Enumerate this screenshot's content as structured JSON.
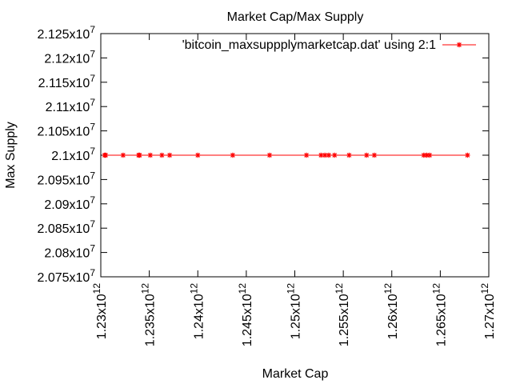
{
  "chart_data": {
    "type": "line",
    "title": "Market Cap/Max Supply",
    "xlabel": "Market Cap",
    "ylabel": "Max Supply",
    "xlim": [
      1230000000000.0,
      1270000000000.0
    ],
    "ylim": [
      20750000.0,
      21250000.0
    ],
    "x_ticks": [
      {
        "mantissa": "1.23",
        "exp": "12",
        "value": 1230000000000.0
      },
      {
        "mantissa": "1.235",
        "exp": "12",
        "value": 1235000000000.0
      },
      {
        "mantissa": "1.24",
        "exp": "12",
        "value": 1240000000000.0
      },
      {
        "mantissa": "1.245",
        "exp": "12",
        "value": 1245000000000.0
      },
      {
        "mantissa": "1.25",
        "exp": "12",
        "value": 1250000000000.0
      },
      {
        "mantissa": "1.255",
        "exp": "12",
        "value": 1255000000000.0
      },
      {
        "mantissa": "1.26",
        "exp": "12",
        "value": 1260000000000.0
      },
      {
        "mantissa": "1.265",
        "exp": "12",
        "value": 1265000000000.0
      },
      {
        "mantissa": "1.27",
        "exp": "12",
        "value": 1270000000000.0
      }
    ],
    "y_ticks": [
      {
        "mantissa": "2.075",
        "exp": "7",
        "value": 20750000.0
      },
      {
        "mantissa": "2.08",
        "exp": "7",
        "value": 20800000.0
      },
      {
        "mantissa": "2.085",
        "exp": "7",
        "value": 20850000.0
      },
      {
        "mantissa": "2.09",
        "exp": "7",
        "value": 20900000.0
      },
      {
        "mantissa": "2.095",
        "exp": "7",
        "value": 20950000.0
      },
      {
        "mantissa": "2.1",
        "exp": "7",
        "value": 21000000.0
      },
      {
        "mantissa": "2.105",
        "exp": "7",
        "value": 21050000.0
      },
      {
        "mantissa": "2.11",
        "exp": "7",
        "value": 21100000.0
      },
      {
        "mantissa": "2.115",
        "exp": "7",
        "value": 21150000.0
      },
      {
        "mantissa": "2.12",
        "exp": "7",
        "value": 21200000.0
      },
      {
        "mantissa": "2.125",
        "exp": "7",
        "value": 21250000.0
      }
    ],
    "grid": false,
    "legend_position": "top-right",
    "series": [
      {
        "name": "'bitcoin_maxsuppplymarketcap.dat' using 2:1",
        "color": "#ff0000",
        "marker": "star",
        "x": [
          1230400000000.0,
          1230500000000.0,
          1232300000000.0,
          1233900000000.0,
          1234000000000.0,
          1235100000000.0,
          1236300000000.0,
          1237100000000.0,
          1240000000000.0,
          1243600000000.0,
          1247400000000.0,
          1251200000000.0,
          1252700000000.0,
          1253100000000.0,
          1253500000000.0,
          1254100000000.0,
          1255600000000.0,
          1257400000000.0,
          1258200000000.0,
          1263300000000.0,
          1263600000000.0,
          1263900000000.0,
          1267800000000.0
        ],
        "y": [
          21000000.0,
          21000000.0,
          21000000.0,
          21000000.0,
          21000000.0,
          21000000.0,
          21000000.0,
          21000000.0,
          21000000.0,
          21000000.0,
          21000000.0,
          21000000.0,
          21000000.0,
          21000000.0,
          21000000.0,
          21000000.0,
          21000000.0,
          21000000.0,
          21000000.0,
          21000000.0,
          21000000.0,
          21000000.0,
          21000000.0
        ]
      }
    ]
  }
}
